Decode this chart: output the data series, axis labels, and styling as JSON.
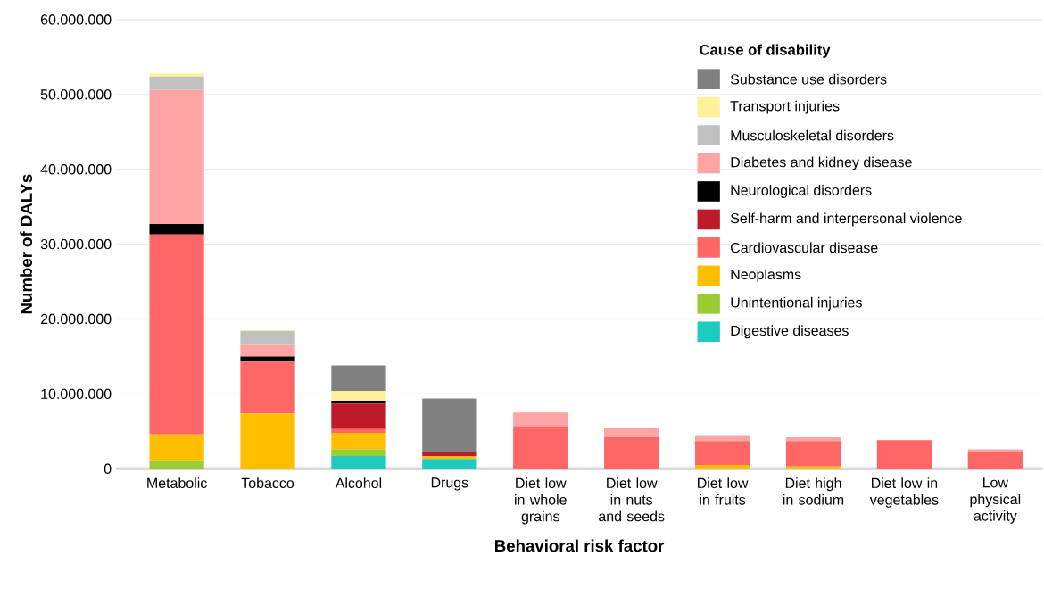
{
  "chart_data": {
    "type": "bar",
    "stacked": true,
    "xlabel": "Behavioral risk factor",
    "ylabel": "Number of DALYs",
    "legend_title": "Cause of disability",
    "legend": "top right",
    "grid": "y",
    "categories": [
      "Metabolic",
      "Tobacco",
      "Alcohol",
      "Drugs",
      "Diet low in whole grains",
      "Diet low in nuts and seeds",
      "Diet low in fruits",
      "Diet high in sodium",
      "Diet low in vegetables",
      "Low physical activity"
    ],
    "ylim": [
      0,
      60000000
    ],
    "yticks": [
      {
        "value": 0,
        "label": "0"
      },
      {
        "value": 10000000,
        "label": "10.000.000"
      },
      {
        "value": 20000000,
        "label": "20.000.000"
      },
      {
        "value": 30000000,
        "label": "30.000.000"
      },
      {
        "value": 40000000,
        "label": "40.000.000"
      },
      {
        "value": 50000000,
        "label": "50.000.000"
      },
      {
        "value": 60000000,
        "label": "60.000.000"
      }
    ],
    "series": [
      {
        "name": "Digestive diseases",
        "color": "#1ecbc0",
        "values": [
          null,
          null,
          1700000,
          1300000,
          null,
          null,
          null,
          null,
          null,
          null
        ]
      },
      {
        "name": "Unintentional injuries",
        "color": "#9acd32",
        "values": [
          1000000,
          null,
          900000,
          null,
          null,
          null,
          null,
          null,
          null,
          null
        ]
      },
      {
        "name": "Neoplasms",
        "color": "#ffbf00",
        "values": [
          3600000,
          7400000,
          2200000,
          400000,
          null,
          null,
          500000,
          300000,
          null,
          null
        ]
      },
      {
        "name": "Cardiovascular disease",
        "color": "#ff6666",
        "values": [
          26700000,
          6900000,
          500000,
          null,
          5700000,
          4200000,
          3200000,
          3400000,
          3800000,
          2300000
        ]
      },
      {
        "name": "Self-harm and interpersonal violence",
        "color": "#bf1a28",
        "values": [
          null,
          null,
          3400000,
          500000,
          null,
          null,
          null,
          null,
          null,
          null
        ]
      },
      {
        "name": "Neurological disorders",
        "color": "#000000",
        "values": [
          1400000,
          700000,
          400000,
          null,
          null,
          null,
          null,
          null,
          null,
          null
        ]
      },
      {
        "name": "Diabetes and kidney disease",
        "color": "#ffa4a4",
        "values": [
          17900000,
          1500000,
          null,
          null,
          1800000,
          1200000,
          800000,
          500000,
          null,
          300000
        ]
      },
      {
        "name": "Musculoskeletal disorders",
        "color": "#c0c0c0",
        "values": [
          1800000,
          1900000,
          null,
          null,
          null,
          null,
          null,
          null,
          null,
          null
        ]
      },
      {
        "name": "Transport injuries",
        "color": "#fff09a",
        "values": [
          400000,
          100000,
          1300000,
          null,
          null,
          null,
          null,
          null,
          null,
          null
        ]
      },
      {
        "name": "Substance use disorders",
        "color": "#808080",
        "values": [
          null,
          null,
          3400000,
          7200000,
          null,
          null,
          null,
          null,
          null,
          null
        ]
      }
    ]
  }
}
